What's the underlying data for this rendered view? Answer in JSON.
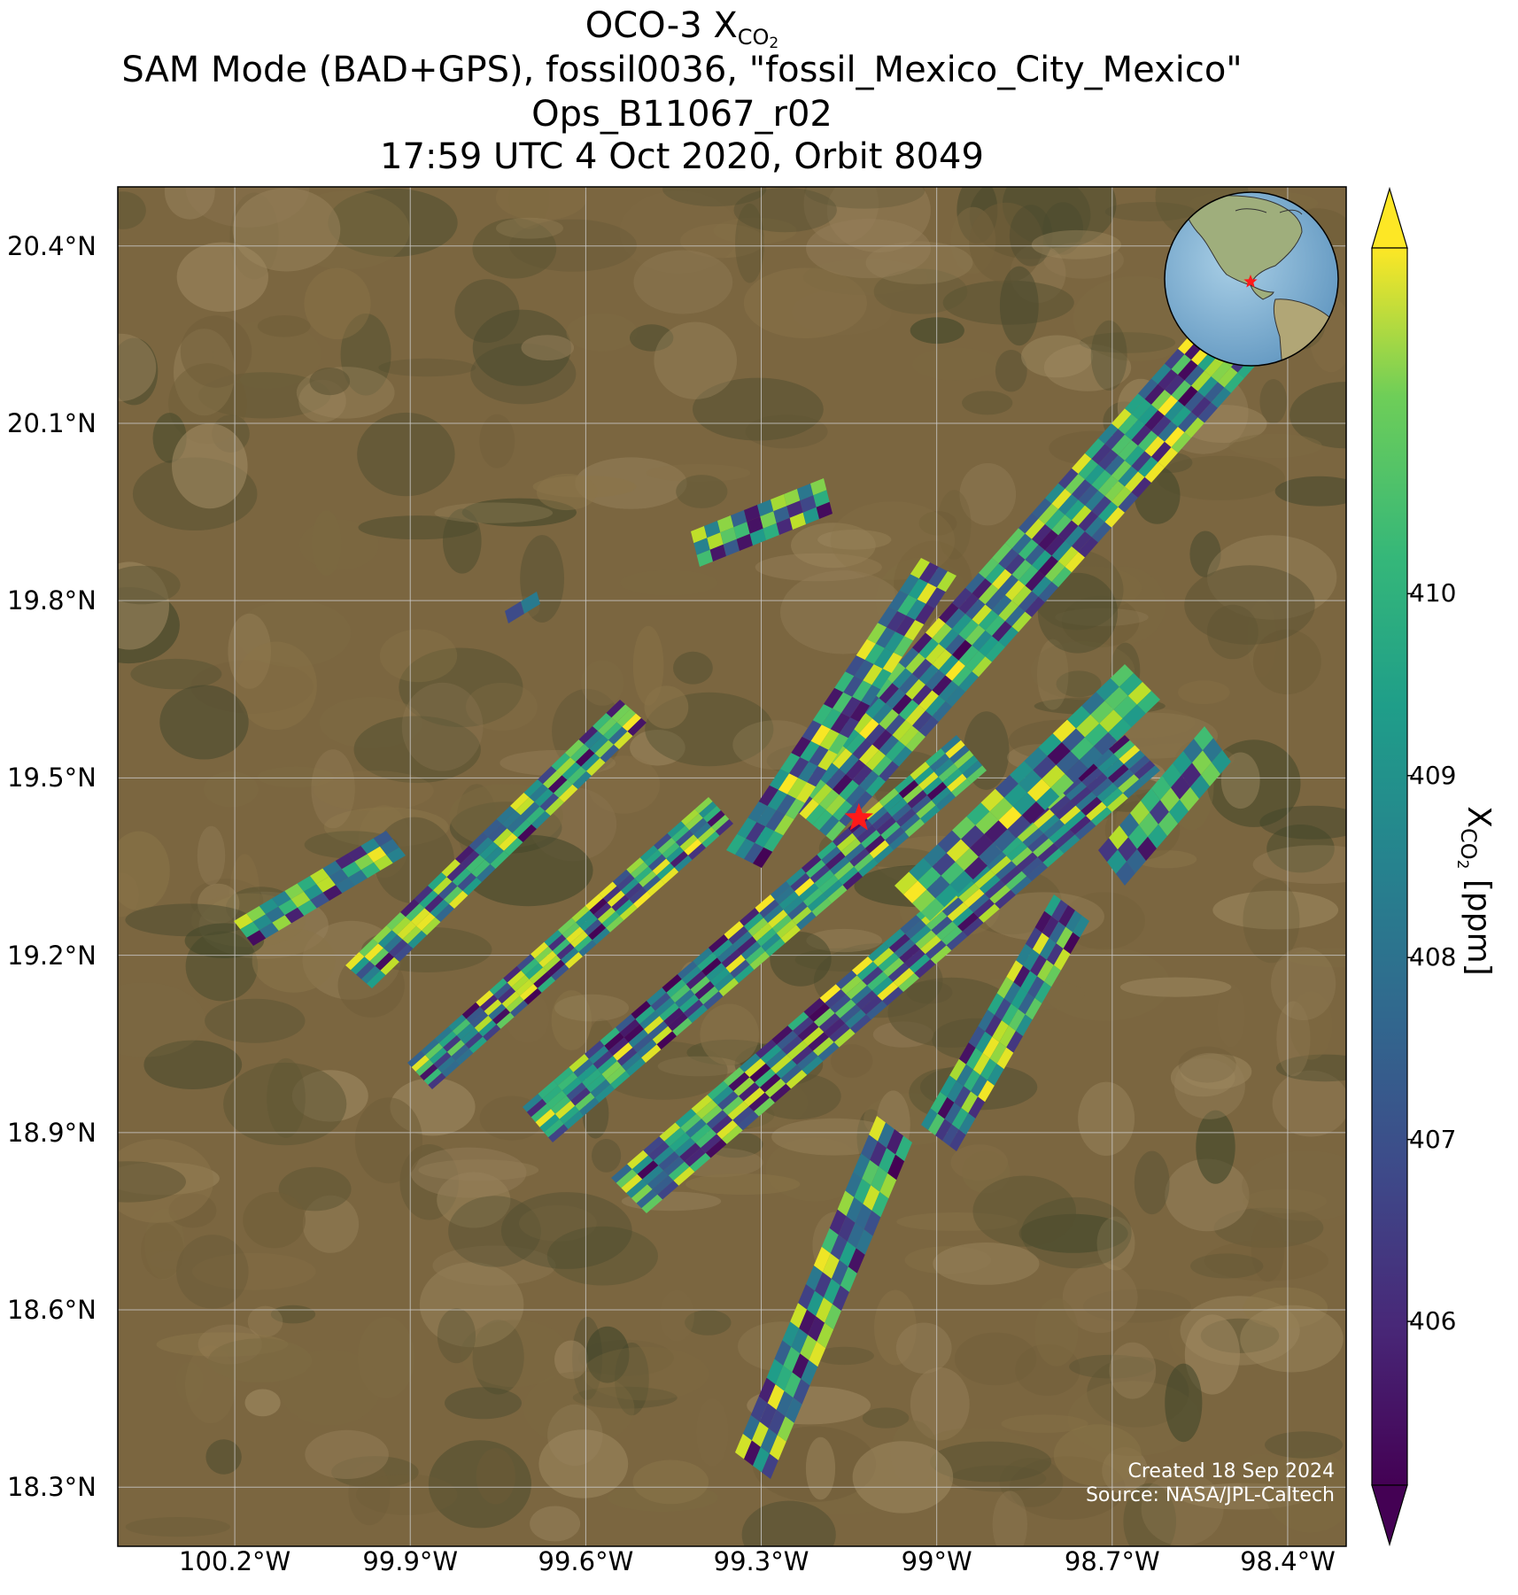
{
  "title": {
    "line1_prefix": "OCO-3 X",
    "line1_sub": "CO",
    "line1_sub2": "2",
    "line2": "SAM Mode (BAD+GPS), fossil0036, \"fossil_Mexico_City_Mexico\"",
    "line3": "Ops_B11067_r02",
    "line4": "17:59 UTC 4 Oct 2020, Orbit 8049"
  },
  "map": {
    "lon_range": [
      -100.4,
      -98.3
    ],
    "lat_range": [
      18.2,
      20.5
    ],
    "lat_ticks": [
      {
        "value": 20.4,
        "label": "20.4°N"
      },
      {
        "value": 20.1,
        "label": "20.1°N"
      },
      {
        "value": 19.8,
        "label": "19.8°N"
      },
      {
        "value": 19.5,
        "label": "19.5°N"
      },
      {
        "value": 19.2,
        "label": "19.2°N"
      },
      {
        "value": 18.9,
        "label": "18.9°N"
      },
      {
        "value": 18.6,
        "label": "18.6°N"
      },
      {
        "value": 18.3,
        "label": "18.3°N"
      }
    ],
    "lon_ticks": [
      {
        "value": -100.2,
        "label": "100.2°W"
      },
      {
        "value": -99.9,
        "label": "99.9°W"
      },
      {
        "value": -99.6,
        "label": "99.6°W"
      },
      {
        "value": -99.3,
        "label": "99.3°W"
      },
      {
        "value": -99.0,
        "label": "99°W"
      },
      {
        "value": -98.7,
        "label": "98.7°W"
      },
      {
        "value": -98.4,
        "label": "98.4°W"
      }
    ],
    "gridlines": true,
    "target": {
      "name": "fossil_Mexico_City_Mexico",
      "lon": -99.133,
      "lat": 19.432,
      "color": "#ff1a1a"
    },
    "background": "satellite imagery (terrain)",
    "inset_globe": {
      "position": "top-right",
      "marker_color": "#ff1a1a"
    }
  },
  "colorbar": {
    "label_prefix": "X",
    "label_sub": "CO",
    "label_sub2": "2",
    "label_suffix": " [ppm]",
    "min": 405.1,
    "max": 411.9,
    "ticks": [
      "406",
      "407",
      "408",
      "409",
      "410"
    ],
    "tick_values": [
      406,
      407,
      408,
      409,
      410
    ],
    "colormap": "viridis",
    "extend": "both"
  },
  "credits": {
    "created": "Created 18 Sep 2024",
    "source": "Source: NASA/JPL-Caltech"
  },
  "colors": {
    "viridis_low": "#440154",
    "viridis_mid": "#21918c",
    "viridis_high": "#fde725",
    "target_star": "#ff1a1a"
  }
}
